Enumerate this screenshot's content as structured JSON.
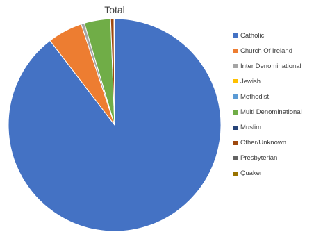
{
  "chart_data": {
    "type": "pie",
    "title": "Total",
    "legend_position": "right",
    "slices": [
      {
        "label": "Catholic",
        "value": 89.6,
        "color": "#4472C4"
      },
      {
        "label": "Church Of Ireland",
        "value": 5.3,
        "color": "#ED7D31"
      },
      {
        "label": "Inter Denominational",
        "value": 0.5,
        "color": "#A5A5A5"
      },
      {
        "label": "Jewish",
        "value": 0.0,
        "color": "#FFC000"
      },
      {
        "label": "Methodist",
        "value": 0.0,
        "color": "#5B9BD5"
      },
      {
        "label": "Multi Denominational",
        "value": 4.0,
        "color": "#70AD47"
      },
      {
        "label": "Muslim",
        "value": 0.0,
        "color": "#264478"
      },
      {
        "label": "Other/Unknown",
        "value": 0.5,
        "color": "#9E480E"
      },
      {
        "label": "Presbyterian",
        "value": 0.1,
        "color": "#636363"
      },
      {
        "label": "Quaker",
        "value": 0.0,
        "color": "#997300"
      }
    ]
  }
}
